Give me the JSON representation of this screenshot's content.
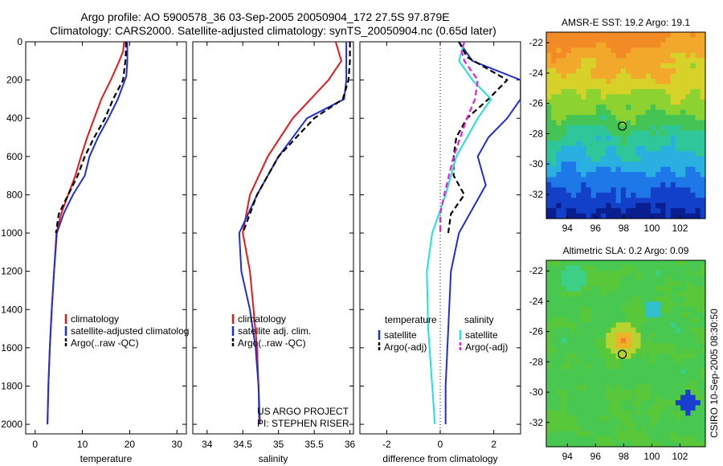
{
  "header": {
    "title_line1": "Argo profile: AO 5900578_36 03-Sep-2005 20050904_172 27.5S 97.879E",
    "title_line2": "Climatology: CARS2000. Satellite-adjusted climatology: synTS_20050904.nc (0.65d later)"
  },
  "colors": {
    "climatology": "#e41a1c",
    "satellite": "#1f2fd6",
    "argo": "#000000",
    "salinity_satellite": "#22e0e0",
    "salinity_argo_adj": "#e020e0"
  },
  "chart_data": [
    {
      "type": "line",
      "panel": "temperature",
      "xlabel": "temperature",
      "xlim": [
        -2,
        32
      ],
      "ylim": [
        2050,
        0
      ],
      "xticks": [
        0,
        10,
        20,
        30
      ],
      "yticks": [
        0,
        200,
        400,
        600,
        800,
        1000,
        1200,
        1400,
        1600,
        1800,
        2000
      ],
      "legend": [
        "climatology",
        "satellite-adjusted climatolog",
        "Argo(..raw -QC)"
      ],
      "series": [
        {
          "name": "climatology",
          "style": "solid",
          "color": "#e41a1c",
          "x": [
            18.8,
            18.6,
            17.8,
            16.0,
            14.0,
            12.5,
            11.0,
            9.7,
            8.5,
            7.0,
            5.5,
            4.5,
            4.0,
            3.5,
            3.1,
            2.8,
            2.6
          ],
          "y": [
            0,
            50,
            100,
            200,
            300,
            400,
            500,
            600,
            700,
            800,
            900,
            1000,
            1200,
            1400,
            1600,
            1800,
            2000
          ]
        },
        {
          "name": "satellite-adjusted climatolog",
          "style": "solid",
          "color": "#1f2fd6",
          "x": [
            19.5,
            19.5,
            19.5,
            19.3,
            17.5,
            15.5,
            13.3,
            11.5,
            10.5,
            8.0,
            6.0,
            4.6,
            4.0,
            3.5,
            3.1,
            2.8,
            2.6
          ],
          "y": [
            0,
            50,
            100,
            180,
            300,
            400,
            500,
            600,
            700,
            800,
            900,
            1000,
            1200,
            1400,
            1600,
            1800,
            2000
          ]
        },
        {
          "name": "Argo(..raw -QC)",
          "style": "dashed",
          "color": "#000000",
          "x": [
            19.2,
            19.2,
            19.1,
            18.6,
            16.5,
            14.8,
            12.5,
            10.5,
            9.0,
            7.0,
            5.0,
            4.4
          ],
          "y": [
            0,
            50,
            100,
            200,
            300,
            400,
            500,
            600,
            700,
            800,
            900,
            1000
          ]
        }
      ]
    },
    {
      "type": "line",
      "panel": "salinity",
      "xlabel": "salinity",
      "xlim": [
        33.8,
        36.05
      ],
      "ylim": [
        2050,
        0
      ],
      "xticks": [
        34,
        34.5,
        35,
        35.5,
        36
      ],
      "legend": [
        "climatology",
        "satellite adj. clim.",
        "Argo(..raw -QC)"
      ],
      "series": [
        {
          "name": "climatology",
          "style": "solid",
          "color": "#e41a1c",
          "x": [
            35.8,
            35.88,
            35.7,
            35.2,
            34.85,
            34.6,
            34.5,
            34.6,
            34.65,
            34.7,
            34.72,
            34.73
          ],
          "y": [
            0,
            100,
            200,
            400,
            600,
            800,
            1000,
            1200,
            1400,
            1600,
            1800,
            2000
          ]
        },
        {
          "name": "satellite adj. clim.",
          "style": "solid",
          "color": "#1f2fd6",
          "x": [
            35.95,
            35.95,
            35.95,
            35.92,
            35.4,
            35.0,
            34.7,
            34.45,
            34.48,
            34.6,
            34.68,
            34.72,
            34.74
          ],
          "y": [
            0,
            100,
            200,
            300,
            400,
            600,
            800,
            1000,
            1200,
            1400,
            1600,
            1800,
            2000
          ]
        },
        {
          "name": "Argo(..raw -QC)",
          "style": "dashed",
          "color": "#000000",
          "x": [
            36.0,
            36.0,
            35.98,
            35.9,
            35.5,
            35.0,
            34.7,
            34.5
          ],
          "y": [
            0,
            100,
            200,
            300,
            400,
            600,
            800,
            1000
          ]
        }
      ]
    },
    {
      "type": "line",
      "panel": "difference",
      "xlabel": "difference from climatology",
      "xlim": [
        -3,
        3
      ],
      "ylim": [
        2050,
        0
      ],
      "xticks": [
        -2,
        0,
        2
      ],
      "legend_left_title": "temperature",
      "legend_right_title": "salinity",
      "legend_left": [
        "satellite",
        "Argo(-adj)"
      ],
      "legend_right": [
        "satellite",
        "Argo(-adj)"
      ],
      "zero_line": true,
      "series": [
        {
          "name": "temperature satellite",
          "style": "solid",
          "color": "#1f2fd6",
          "x": [
            0.7,
            1.2,
            3.0,
            3.0,
            2.5,
            1.8,
            1.4,
            1.7,
            1.5,
            0.7,
            0.4,
            0.3,
            0.2,
            0.2
          ],
          "y": [
            0,
            100,
            200,
            300,
            400,
            500,
            600,
            750,
            800,
            1000,
            1200,
            1500,
            1800,
            2000
          ]
        },
        {
          "name": "temperature Argo(-adj)",
          "style": "dashed",
          "color": "#000000",
          "x": [
            0.7,
            1.0,
            2.5,
            1.8,
            1.0,
            0.6,
            0.5,
            0.5,
            0.9,
            0.4,
            0.3
          ],
          "y": [
            0,
            80,
            200,
            300,
            400,
            500,
            600,
            700,
            800,
            900,
            1000
          ]
        },
        {
          "name": "salinity satellite",
          "style": "solid",
          "color": "#22e0e0",
          "x": [
            0.9,
            0.8,
            0.7,
            1.2,
            1.9,
            1.4,
            0.6,
            0.2,
            -0.3,
            -0.5,
            -0.45,
            -0.3,
            -0.2
          ],
          "y": [
            0,
            50,
            100,
            200,
            300,
            400,
            600,
            800,
            1000,
            1200,
            1500,
            1800,
            2000
          ]
        },
        {
          "name": "salinity Argo(-adj)",
          "style": "dashed",
          "color": "#e020e0",
          "x": [
            0.9,
            0.8,
            0.9,
            1.4,
            1.3,
            1.0,
            0.5,
            0.15,
            0.0,
            0.0
          ],
          "y": [
            0,
            50,
            100,
            200,
            300,
            400,
            600,
            800,
            900,
            1000
          ]
        }
      ]
    },
    {
      "type": "heatmap",
      "panel": "AMSR-E SST",
      "title": "AMSR-E SST: 19.2 Argo: 19.1",
      "xlim": [
        92.5,
        103.8
      ],
      "ylim": [
        -33.6,
        -21.3
      ],
      "xticks": [
        94,
        96,
        98,
        100,
        102
      ],
      "yticks": [
        -22,
        -24,
        -26,
        -28,
        -30,
        -32
      ],
      "marker": {
        "lon": 97.9,
        "lat": -27.5
      },
      "field": "north-south gradient: orange (warm) north, green mid, cyan/blue south"
    },
    {
      "type": "heatmap",
      "panel": "Altimetric SLA",
      "title": "Altimetric SLA: 0.2 Argo: 0.09",
      "xlim": [
        92.5,
        103.8
      ],
      "ylim": [
        -33.6,
        -21.3
      ],
      "xticks": [
        94,
        96,
        98,
        100,
        102
      ],
      "yticks": [
        -22,
        -24,
        -26,
        -28,
        -30,
        -32
      ],
      "marker": {
        "lon": 97.9,
        "lat": -27.5
      },
      "field": "mostly green with orange eddy at marker, scattered cyan/blue patches"
    }
  ],
  "footer": {
    "project_line1": "US ARGO PROJECT",
    "project_line2": "PI: STEPHEN RISER",
    "stamp": "CSIRO 10-Sep-2005 08:30:50"
  }
}
